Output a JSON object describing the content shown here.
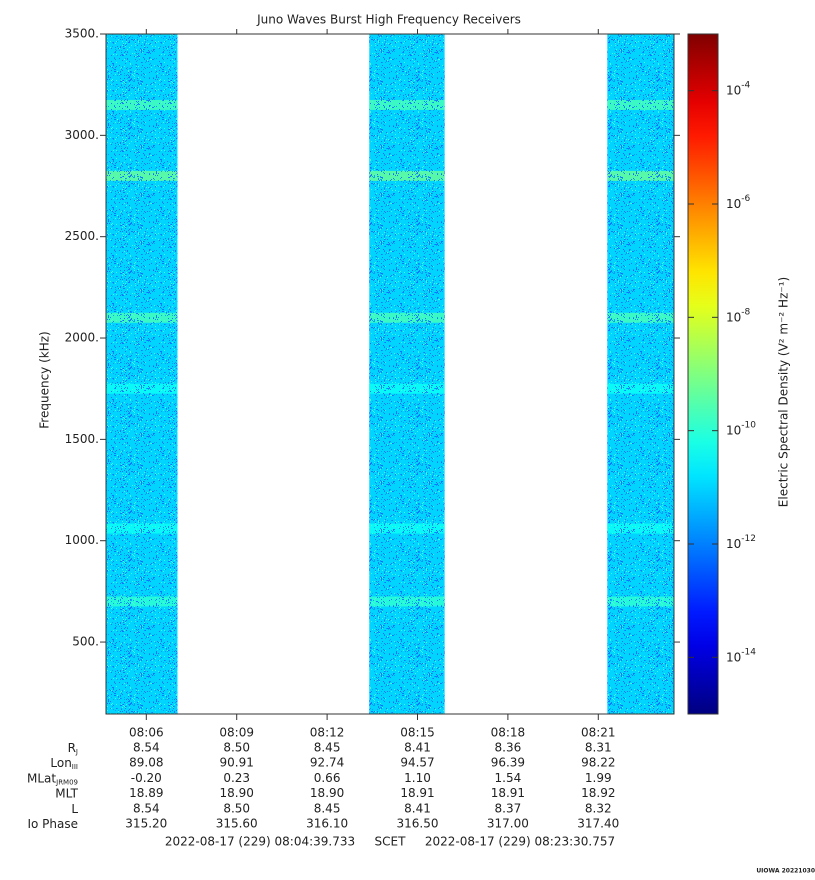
{
  "chart_data": {
    "type": "spectrogram",
    "title": "Juno Waves Burst High Frequency Receivers",
    "y_label": "Frequency (kHz)",
    "colorbar_label": "Electric Spectral Density (V² m⁻² Hz⁻¹)",
    "x_label": "SCET",
    "xlim": [
      "2022-08-17 (229) 08:04:39.733",
      "2022-08-17 (229) 08:23:30.757"
    ],
    "xticks": [
      "08:06",
      "08:09",
      "08:12",
      "08:15",
      "08:18",
      "08:21"
    ],
    "ylim": [
      145,
      3500
    ],
    "yticks": [
      {
        "value": 500,
        "label": "500."
      },
      {
        "value": 1000,
        "label": "1000."
      },
      {
        "value": 1500,
        "label": "1500."
      },
      {
        "value": 2000,
        "label": "2000."
      },
      {
        "value": 2500,
        "label": "2500."
      },
      {
        "value": 3000,
        "label": "3000."
      },
      {
        "value": 3500,
        "label": "3500."
      }
    ],
    "clim": [
      1e-15,
      0.001
    ],
    "color_log_scale": true,
    "cticks": [
      {
        "value": 1e-14,
        "label": "10-14"
      },
      {
        "value": 1e-12,
        "label": "10-12"
      },
      {
        "value": 1e-10,
        "label": "10-10"
      },
      {
        "value": 1e-08,
        "label": "10-8"
      },
      {
        "value": 1e-06,
        "label": "10-6"
      },
      {
        "value": 0.0001,
        "label": "10-4"
      }
    ],
    "bursts": [
      {
        "start": "08:04:39.733",
        "end": "08:07:02"
      },
      {
        "start": "08:13:24",
        "end": "08:15:54"
      },
      {
        "start": "08:21:18",
        "end": "08:23:30.757"
      }
    ],
    "background_level": 1e-11,
    "emission_lines": [
      {
        "frequency": 3150,
        "level": 2e-10
      },
      {
        "frequency": 2800,
        "level": 5e-10
      },
      {
        "frequency": 2100,
        "level": 2e-10
      },
      {
        "frequency": 1750,
        "level": 4e-11
      },
      {
        "frequency": 1060,
        "level": 4e-11
      },
      {
        "frequency": 700,
        "level": 1e-10
      }
    ],
    "ephemeris": [
      {
        "name": "R",
        "subscript": "J",
        "values": [
          "8.54",
          "8.50",
          "8.45",
          "8.41",
          "8.36",
          "8.31"
        ]
      },
      {
        "name": "Lon",
        "subscript": "III",
        "values": [
          "89.08",
          "90.91",
          "92.74",
          "94.57",
          "96.39",
          "98.22"
        ]
      },
      {
        "name": "MLat",
        "subscript": "JRM09",
        "values": [
          "-0.20",
          "0.23",
          "0.66",
          "1.10",
          "1.54",
          "1.99"
        ]
      },
      {
        "name": "MLT",
        "values": [
          "18.89",
          "18.90",
          "18.90",
          "18.91",
          "18.91",
          "18.92"
        ]
      },
      {
        "name": "L",
        "values": [
          "8.54",
          "8.50",
          "8.45",
          "8.41",
          "8.37",
          "8.32"
        ]
      },
      {
        "name": "Io Phase",
        "values": [
          "315.20",
          "315.60",
          "316.10",
          "316.50",
          "317.00",
          "317.40"
        ]
      }
    ]
  },
  "footer": "UIOWA 20221030"
}
